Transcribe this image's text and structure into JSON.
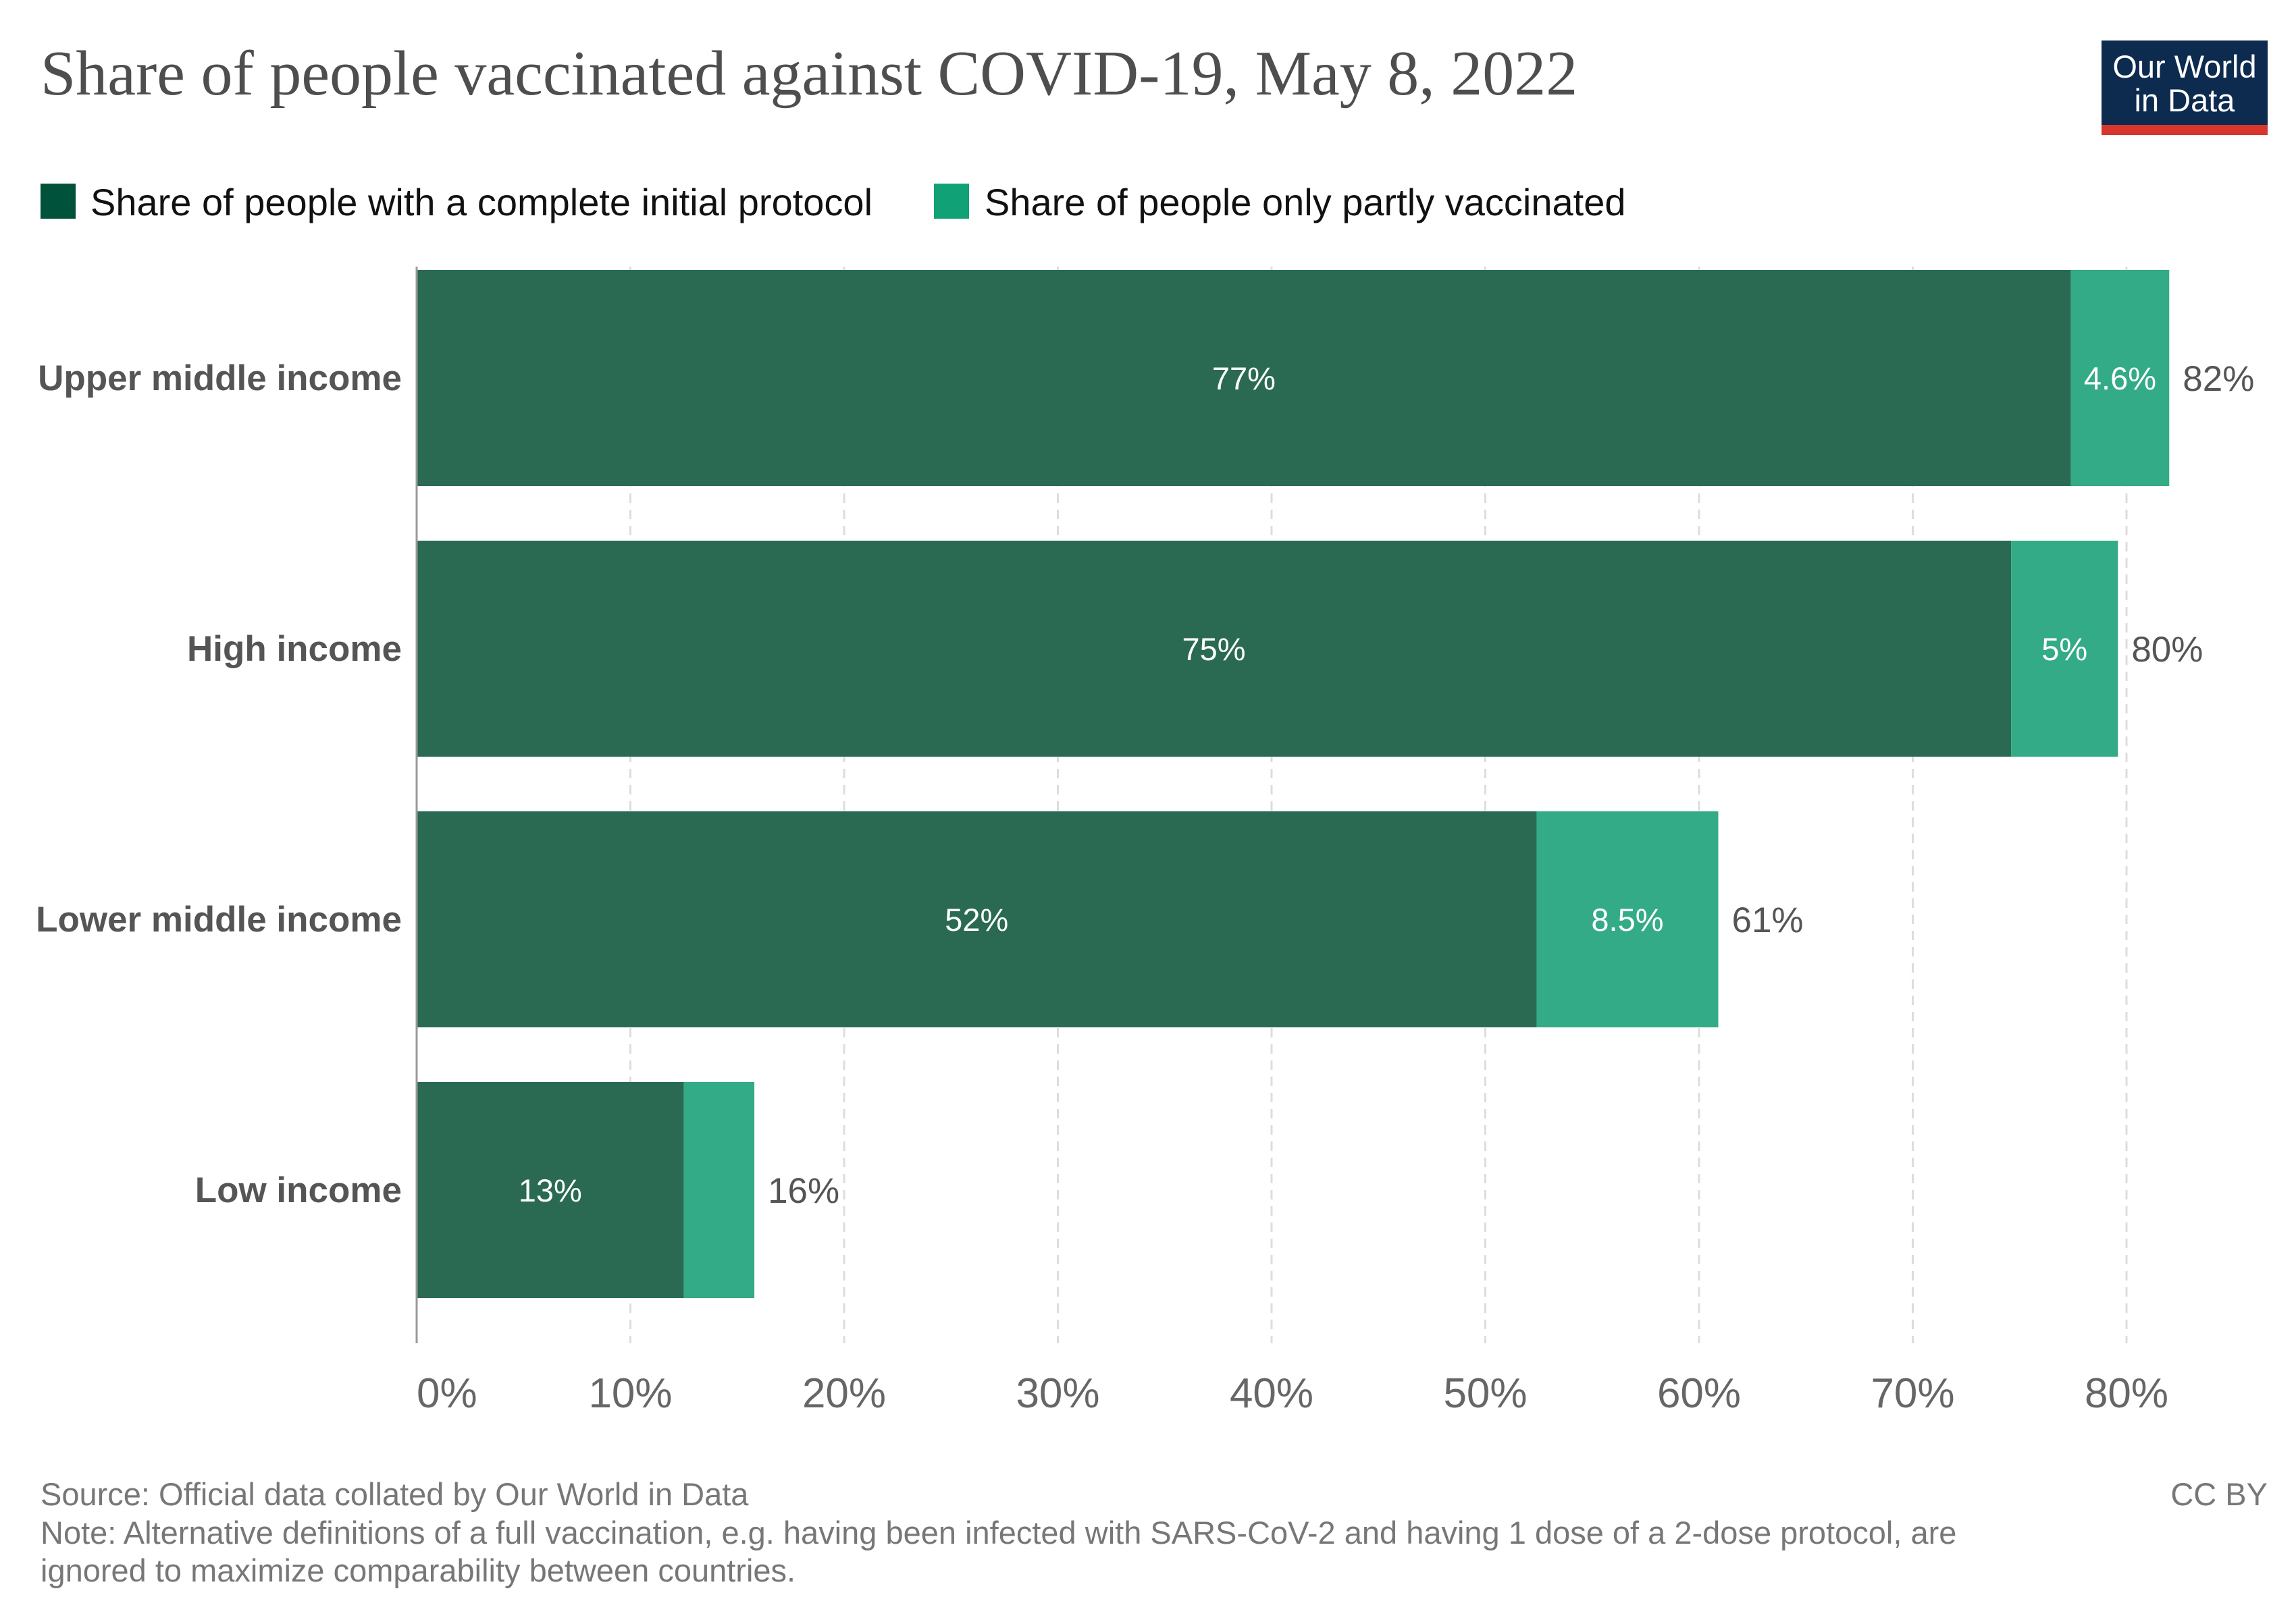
{
  "header": {
    "title": "Share of people vaccinated against COVID-19, May 8, 2022",
    "logo_line1": "Our World",
    "logo_line2": "in Data"
  },
  "footer": {
    "source": "Source: Official data collated by Our World in Data",
    "note_line1": "Note: Alternative definitions of a full vaccination, e.g. having been infected with SARS-CoV-2 and having 1 dose of a 2-dose protocol, are",
    "note_line2": "ignored to maximize comparability between countries.",
    "license": "CC BY"
  },
  "colors": {
    "complete": "#2a6a52",
    "partial": "#33ab86",
    "legend_complete": "#00523a",
    "legend_partial": "#11a176",
    "grid": "#dddddd",
    "axis": "#999999",
    "logo_bg": "#0d2a4f",
    "logo_accent": "#d8352c"
  },
  "chart_data": {
    "type": "bar",
    "orientation": "horizontal",
    "stacked": true,
    "title": "Share of people vaccinated against COVID-19, May 8, 2022",
    "categories": [
      "Upper middle income",
      "High income",
      "Lower middle income",
      "Low income"
    ],
    "series": [
      {
        "name": "Share of people with a complete initial protocol",
        "values": [
          77.4,
          74.6,
          52.4,
          12.5
        ],
        "labels": [
          "77%",
          "75%",
          "52%",
          "13%"
        ]
      },
      {
        "name": "Share of people only partly vaccinated",
        "values": [
          4.6,
          5.0,
          8.5,
          3.3
        ],
        "labels": [
          "4.6%",
          "5%",
          "8.5%",
          ""
        ]
      }
    ],
    "totals": [
      "82%",
      "80%",
      "61%",
      "16%"
    ],
    "xlim": [
      0,
      80
    ],
    "xticks": [
      0,
      10,
      20,
      30,
      40,
      50,
      60,
      70,
      80
    ],
    "xtick_labels": [
      "0%",
      "10%",
      "20%",
      "30%",
      "40%",
      "50%",
      "60%",
      "70%",
      "80%"
    ],
    "grid": true,
    "legend_position": "top-left"
  }
}
